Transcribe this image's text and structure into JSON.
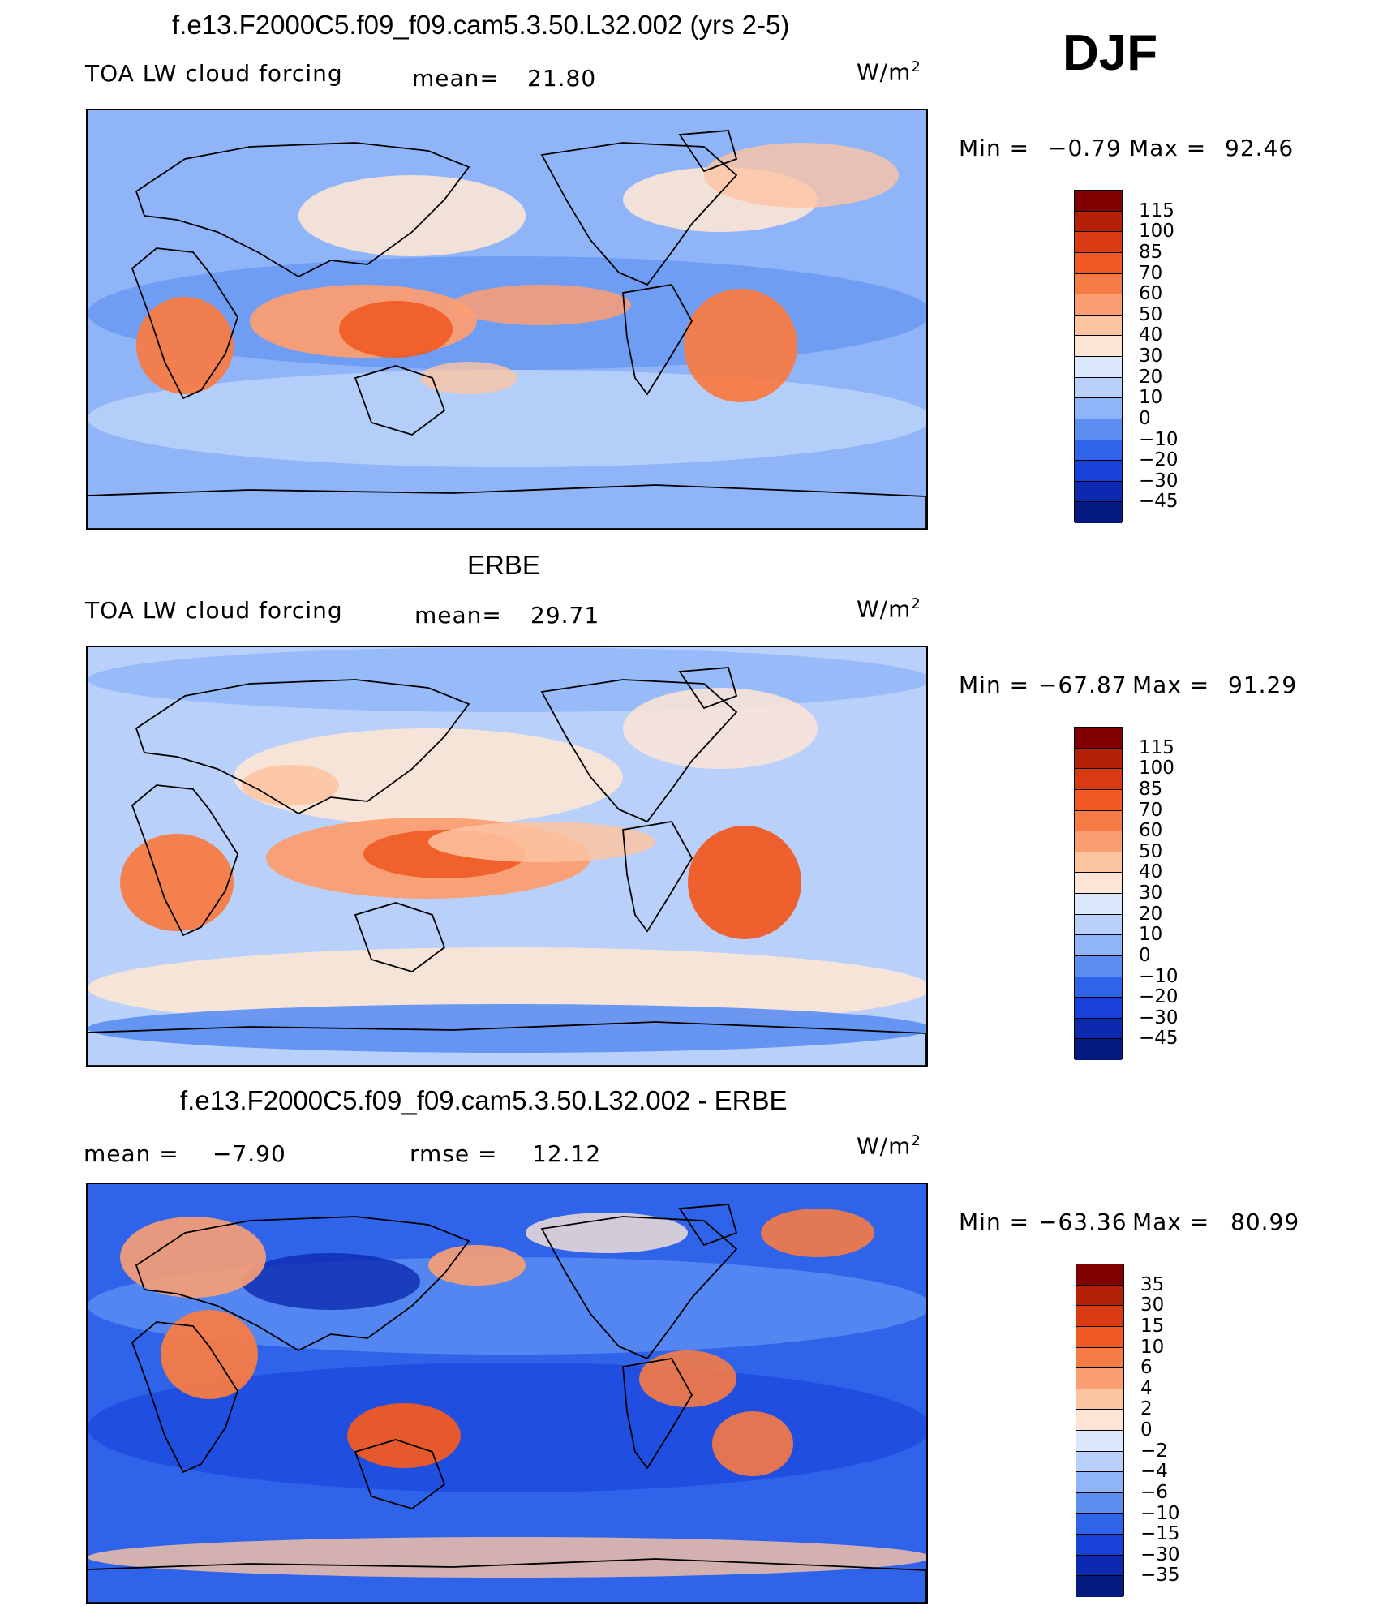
{
  "season_label": "DJF",
  "units": "W/m",
  "units_sup": "2",
  "panels": [
    {
      "title": "f.e13.F2000C5.f09_f09.cam5.3.50.L32.002 (yrs 2-5)",
      "left_label": "TOA  LW  cloud  forcing",
      "stat_label": "mean=",
      "stat_value": "21.80",
      "min_label": "Min  =",
      "min_value": "−0.79",
      "max_label": "Max  =",
      "max_value": "92.46",
      "colorbar_labels": [
        "115",
        "100",
        "85",
        "70",
        "60",
        "50",
        "40",
        "30",
        "20",
        "10",
        "0",
        "−10",
        "−20",
        "−30",
        "−45"
      ]
    },
    {
      "title": "ERBE",
      "left_label": "TOA  LW  cloud  forcing",
      "stat_label": "mean=",
      "stat_value": "29.71",
      "min_label": "Min  =",
      "min_value": "−67.87",
      "max_label": "Max  =",
      "max_value": "91.29",
      "colorbar_labels": [
        "115",
        "100",
        "85",
        "70",
        "60",
        "50",
        "40",
        "30",
        "20",
        "10",
        "0",
        "−10",
        "−20",
        "−30",
        "−45"
      ]
    },
    {
      "title": "f.e13.F2000C5.f09_f09.cam5.3.50.L32.002 - ERBE",
      "left_label": "mean  =",
      "left_value": "−7.90",
      "stat_label": "rmse  =",
      "stat_value": "12.12",
      "min_label": "Min  =",
      "min_value": "−63.36",
      "max_label": "Max  =",
      "max_value": "80.99",
      "colorbar_labels": [
        "35",
        "30",
        "15",
        "10",
        "6",
        "4",
        "2",
        "0",
        "−2",
        "−4",
        "−6",
        "−10",
        "−15",
        "−30",
        "−35"
      ]
    }
  ],
  "colors": {
    "scale": [
      "#800000",
      "#b52107",
      "#d83a12",
      "#f05a22",
      "#f77b44",
      "#fb9e72",
      "#fdc4a2",
      "#fde5d5",
      "#dbe8fb",
      "#b8d0fa",
      "#8fb4f8",
      "#5c8ef2",
      "#2f63ea",
      "#1841d8",
      "#0c2ab0",
      "#051a7e"
    ],
    "land_outline": "#000000"
  }
}
